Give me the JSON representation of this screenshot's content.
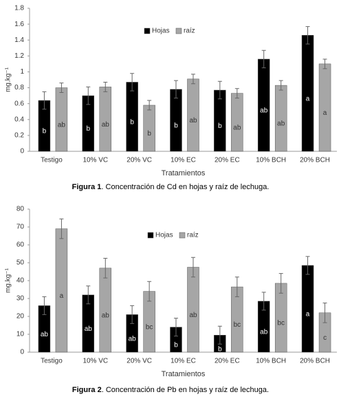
{
  "chart_data": [
    {
      "type": "bar",
      "ylabel": "mg.kg⁻¹",
      "xlabel": "Tratamientos",
      "categories": [
        "Testigo",
        "10% VC",
        "20% VC",
        "10% EC",
        "20% EC",
        "10% BCH",
        "20% BCH"
      ],
      "series": [
        {
          "name": "Hojas",
          "color": "#000000",
          "values": [
            0.64,
            0.7,
            0.87,
            0.78,
            0.77,
            1.16,
            1.46
          ],
          "errors": [
            0.11,
            0.11,
            0.11,
            0.11,
            0.11,
            0.11,
            0.11
          ],
          "letters": [
            "b",
            "b",
            "b",
            "b",
            "b",
            "ab",
            "a"
          ]
        },
        {
          "name": "raíz",
          "color": "#a6a6a6",
          "values": [
            0.8,
            0.81,
            0.58,
            0.91,
            0.73,
            0.83,
            1.1
          ],
          "errors": [
            0.06,
            0.06,
            0.06,
            0.06,
            0.06,
            0.06,
            0.06
          ],
          "letters": [
            "ab",
            "ab",
            "b",
            "ab",
            "ab",
            "ab",
            "a"
          ]
        }
      ],
      "ylim": [
        0,
        1.8
      ],
      "yticks": [
        0,
        0.2,
        0.4,
        0.6,
        0.8,
        1,
        1.2,
        1.4,
        1.6,
        1.8
      ],
      "caption_label": "Figura 1",
      "caption": ". Concentración de Cd en hojas y raíz de lechuga."
    },
    {
      "type": "bar",
      "ylabel": "mg.kg⁻¹",
      "xlabel": "Tratamientos",
      "categories": [
        "Testigo",
        "10% VC",
        "20% VC",
        "10% EC",
        "20% EC",
        "10% BCH",
        "20% BCH"
      ],
      "series": [
        {
          "name": "Hojas",
          "color": "#000000",
          "values": [
            26,
            32,
            21,
            14,
            9.5,
            28.5,
            48.5
          ],
          "errors": [
            5,
            5,
            5,
            5,
            5,
            5,
            5
          ],
          "letters": [
            "ab",
            "ab",
            "ab",
            "b",
            "b",
            "ab",
            "a"
          ]
        },
        {
          "name": "raíz",
          "color": "#a6a6a6",
          "values": [
            69,
            47,
            34,
            47.5,
            36.5,
            38.5,
            22
          ],
          "errors": [
            5.5,
            5.5,
            5.5,
            5.5,
            5.5,
            5.5,
            5.5
          ],
          "letters": [
            "a",
            "ab",
            "bc",
            "ab",
            "bc",
            "bc",
            "c"
          ]
        }
      ],
      "ylim": [
        0,
        80
      ],
      "yticks": [
        0,
        10,
        20,
        30,
        40,
        50,
        60,
        70,
        80
      ],
      "caption_label": "Figura 2",
      "caption": ". Concentración de Pb en hojas y raíz de lechuga."
    }
  ]
}
